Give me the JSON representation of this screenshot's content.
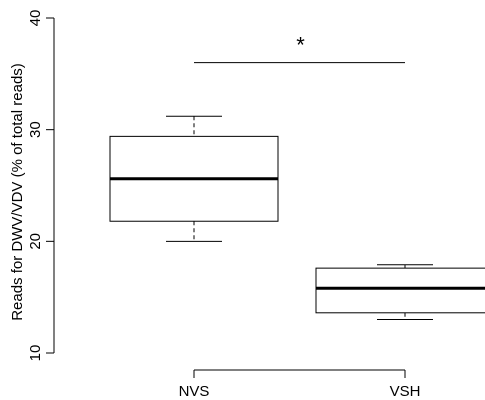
{
  "chart_data": {
    "type": "boxplot",
    "title": "",
    "xlabel": "",
    "ylabel": "Reads for DWV/VDV (% of total reads)",
    "ylim": [
      10,
      40
    ],
    "yticks": [
      10,
      20,
      30,
      40
    ],
    "categories": [
      "NVS",
      "VSH"
    ],
    "boxes": [
      {
        "category": "NVS",
        "whisker_low": 20.0,
        "q1": 21.8,
        "median": 25.6,
        "q3": 29.4,
        "whisker_high": 31.2
      },
      {
        "category": "VSH",
        "whisker_low": 13.0,
        "q1": 13.6,
        "median": 15.8,
        "q3": 17.6,
        "whisker_high": 17.9
      }
    ],
    "significance": {
      "label": "*",
      "between": [
        "NVS",
        "VSH"
      ],
      "y": 36
    },
    "grid": false,
    "colors": {
      "box_fill": "#ffffff",
      "stroke": "#000000"
    }
  }
}
